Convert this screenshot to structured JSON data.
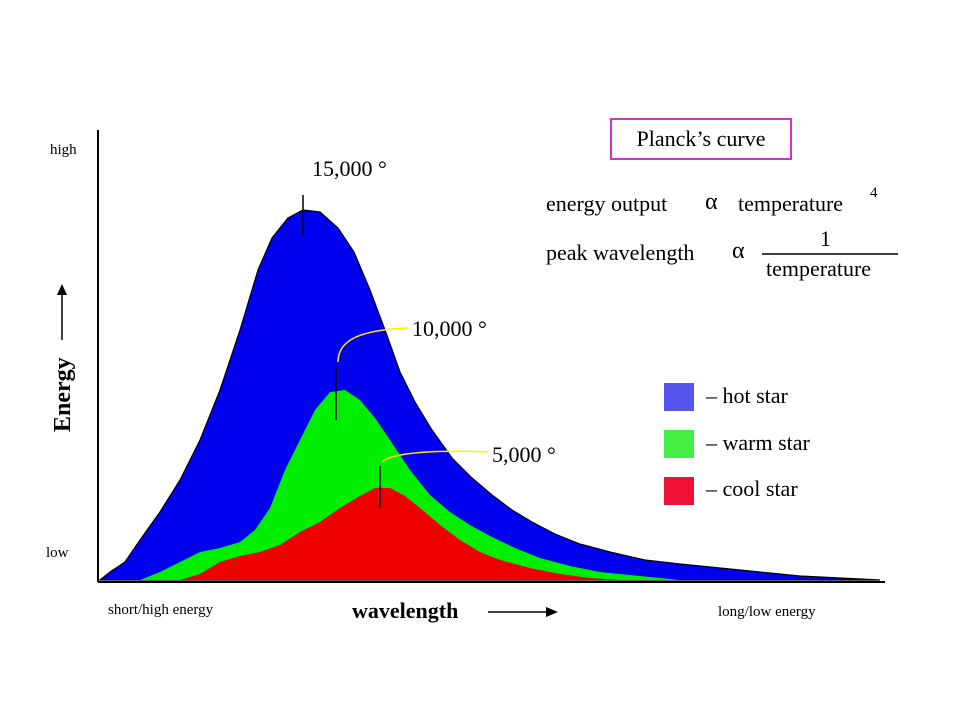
{
  "chart_data": {
    "type": "area",
    "title": "Planck’s curve",
    "xlabel": "wavelength",
    "ylabel": "Energy",
    "y_tick_labels": [
      "high",
      "low"
    ],
    "x_tick_labels": [
      "short/high energy",
      "long/low energy"
    ],
    "series": [
      {
        "name": "hot star",
        "temperature": "15,000 °",
        "color": "#0000ee"
      },
      {
        "name": "warm star",
        "temperature": "10,000 °",
        "color": "#00ee00"
      },
      {
        "name": "cool star",
        "temperature": "5,000 °",
        "color": "#ee0000"
      }
    ],
    "legend": [
      {
        "label": "– hot star",
        "color": "#5555ee"
      },
      {
        "label": "– warm star",
        "color": "#44ee44"
      },
      {
        "label": "– cool star",
        "color": "#ee1133"
      }
    ],
    "peak_labels": [
      "15,000 °",
      "10,000 °",
      "5,000 °"
    ],
    "formulas": {
      "energy_left": "energy output",
      "alpha": "α",
      "energy_right": "temperature",
      "energy_exponent": "4",
      "peak_left": "peak wavelength",
      "numerator": "1",
      "denominator": "temperature"
    },
    "grid": false
  }
}
